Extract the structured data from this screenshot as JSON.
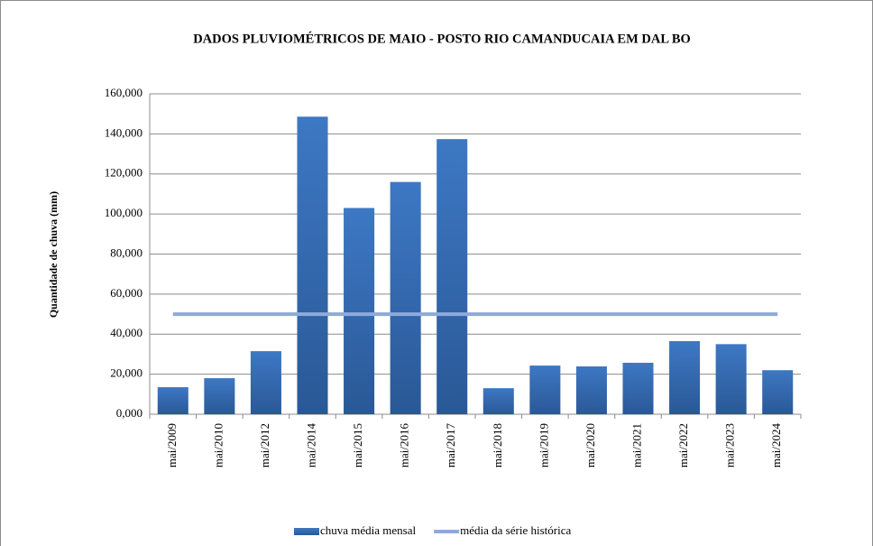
{
  "chart_data": {
    "type": "bar",
    "title": "DADOS PLUVIOMÉTRICOS DE MAIO - POSTO RIO CAMANDUCAIA EM DAL BO",
    "y_label": "Quantidade  de chuva (mm)",
    "categories": [
      "mai/2009",
      "mai/2010",
      "mai/2012",
      "mai/2014",
      "mai/2015",
      "mai/2016",
      "mai/2017",
      "mai/2018",
      "mai/2019",
      "mai/2020",
      "mai/2021",
      "mai/2022",
      "mai/2023",
      "mai/2024"
    ],
    "series": [
      {
        "name": "chuva média mensal",
        "type": "bar",
        "color": "#3a70b8",
        "values": [
          13.5,
          18,
          31.5,
          148.6,
          103,
          116,
          137.4,
          13,
          24.3,
          23.9,
          25.7,
          36.5,
          35,
          22
        ]
      },
      {
        "name": "média da série histórica",
        "type": "line",
        "color": "#8eaadb",
        "values": [
          50,
          50,
          50,
          50,
          50,
          50,
          50,
          50,
          50,
          50,
          50,
          50,
          50,
          50
        ]
      }
    ],
    "ylim": [
      0,
      160
    ],
    "yticks": [
      {
        "value": 0,
        "label": "0,000"
      },
      {
        "value": 20,
        "label": "20,000"
      },
      {
        "value": 40,
        "label": "40,000"
      },
      {
        "value": 60,
        "label": "60,000"
      },
      {
        "value": 80,
        "label": "80,000"
      },
      {
        "value": 100,
        "label": "100,000"
      },
      {
        "value": 120,
        "label": "120,000"
      },
      {
        "value": 140,
        "label": "140,000"
      },
      {
        "value": 160,
        "label": "160,000"
      }
    ],
    "grid": true,
    "legend": "bottom"
  }
}
